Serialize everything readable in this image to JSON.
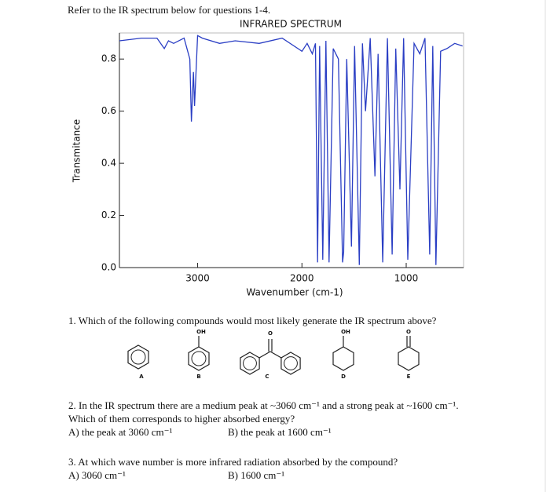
{
  "header": "Refer to the IR spectrum below for questions 1-4.",
  "chart_data": {
    "type": "line",
    "title": "INFRARED SPECTRUM",
    "x_label": "Wavenumber (cm-1)",
    "y_label": "Transmitance",
    "x": [
      3750,
      3540,
      3390,
      3320,
      3280,
      3230,
      3130,
      3075,
      3060,
      3040,
      3030,
      3000,
      2955,
      2790,
      2640,
      2410,
      2190,
      2000,
      1950,
      1900,
      1870,
      1850,
      1830,
      1800,
      1770,
      1740,
      1700,
      1650,
      1610,
      1600,
      1570,
      1525,
      1495,
      1450,
      1420,
      1390,
      1345,
      1300,
      1270,
      1225,
      1180,
      1135,
      1100,
      1060,
      1025,
      985,
      925,
      870,
      820,
      775,
      745,
      715,
      670,
      610,
      535,
      460
    ],
    "series": [
      {
        "color": "#2a3ec4",
        "values": [
          0.87,
          0.88,
          0.88,
          0.84,
          0.87,
          0.86,
          0.88,
          0.8,
          0.56,
          0.75,
          0.62,
          0.89,
          0.88,
          0.86,
          0.87,
          0.86,
          0.88,
          0.83,
          0.86,
          0.82,
          0.86,
          0.02,
          0.85,
          0.03,
          0.87,
          0.02,
          0.84,
          0.8,
          0.02,
          0.06,
          0.8,
          0.08,
          0.85,
          0.01,
          0.86,
          0.6,
          0.88,
          0.35,
          0.82,
          0.02,
          0.88,
          0.05,
          0.84,
          0.3,
          0.88,
          0.03,
          0.86,
          0.82,
          0.88,
          0.05,
          0.85,
          0.01,
          0.83,
          0.84,
          0.86,
          0.85
        ]
      }
    ],
    "xlim": [
      3750,
      450
    ],
    "ylim": [
      0,
      0.9
    ],
    "xticks": [
      3000,
      2000,
      1000
    ],
    "yticks": [
      {
        "value": 0,
        "label": "0.0"
      },
      0.2,
      0.4,
      0.6,
      0.8
    ]
  },
  "questions": [
    {
      "lines": [
        "1. Which of the following compounds would most likely generate the IR spectrum above?"
      ],
      "compounds": [
        {
          "label": "A"
        },
        {
          "label": "B",
          "group": "OH"
        },
        {
          "label": "C",
          "group": "O"
        },
        {
          "label": "D",
          "group": "OH"
        },
        {
          "label": "E",
          "group": "O"
        }
      ]
    },
    {
      "lines": [
        "2. In the IR spectrum there are a medium peak at ~3060 cm⁻¹ and a strong peak at ~1600 cm⁻¹.",
        "Which of them corresponds to higher absorbed energy?"
      ],
      "options": [
        "A) the peak at 3060 cm⁻¹",
        "B) the peak at 1600 cm⁻¹"
      ]
    },
    {
      "lines": [
        "3. At which wave number is more infrared radiation absorbed by the compound?"
      ],
      "options": [
        "A) 3060 cm⁻¹",
        "B) 1600 cm⁻¹"
      ]
    }
  ]
}
